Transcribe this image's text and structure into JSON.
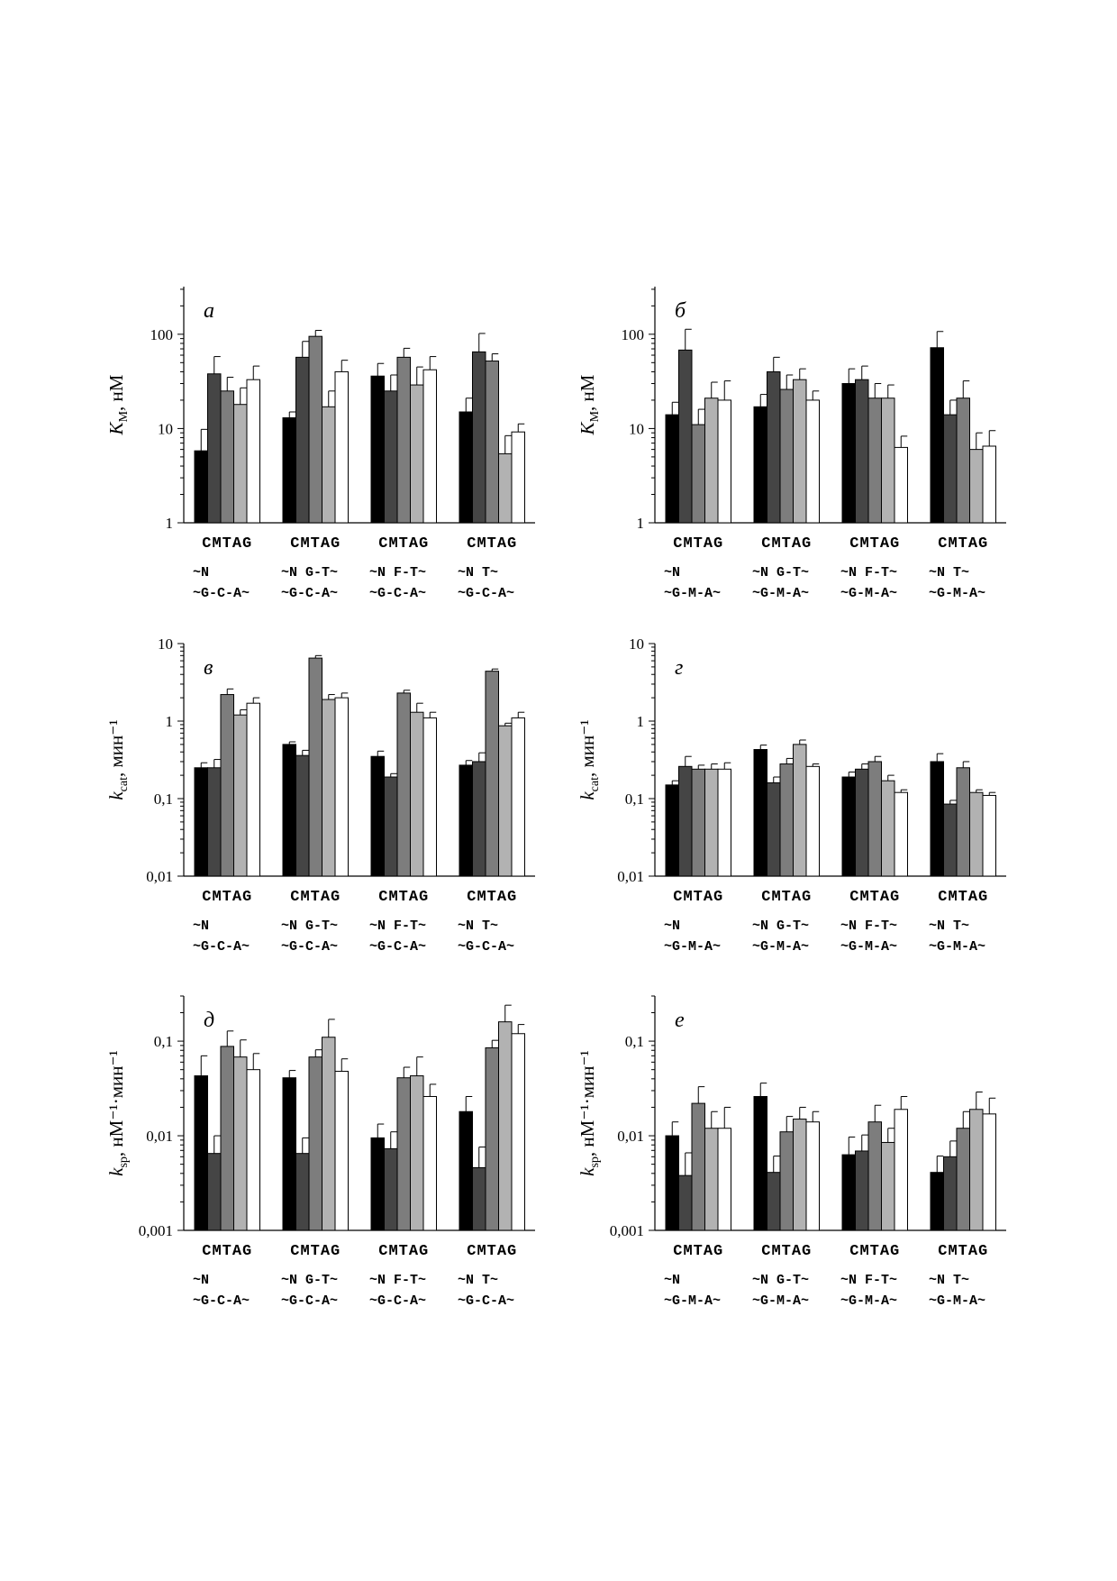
{
  "figure": {
    "bar_colors": [
      "#000000",
      "#454545",
      "#7d7d7d",
      "#b2b2b2",
      "#ffffff"
    ],
    "bar_labels": [
      "C",
      "M",
      "T",
      "A",
      "G"
    ],
    "seq_lines_cga": [
      [
        "~N",
        "~G-C-A~"
      ],
      [
        "~N G-T~",
        "~G-C-A~"
      ],
      [
        "~N F-T~",
        "~G-C-A~"
      ],
      [
        "~N    T~",
        "~G-C-A~"
      ]
    ],
    "seq_lines_gma": [
      [
        "~N",
        "~G-M-A~"
      ],
      [
        "~N G-T~",
        "~G-M-A~"
      ],
      [
        "~N F-T~",
        "~G-M-A~"
      ],
      [
        "~N    T~",
        "~G-M-A~"
      ]
    ]
  },
  "chart_data": [
    {
      "type": "bar",
      "panel_label": "а",
      "scale": "log",
      "ylabel": "K_M, нМ",
      "ylim": [
        1,
        320
      ],
      "yticks": [
        "1",
        "10",
        "100"
      ],
      "categories": [
        "C",
        "M",
        "T",
        "A",
        "G"
      ],
      "groups": 4,
      "values": [
        [
          5.8,
          38,
          25,
          18,
          33
        ],
        [
          13,
          57,
          95,
          17,
          40
        ],
        [
          36,
          25,
          57,
          29,
          42
        ],
        [
          15,
          65,
          52,
          5.4,
          9.2
        ]
      ],
      "errors": [
        [
          4,
          20,
          10,
          9,
          13
        ],
        [
          2,
          27,
          15,
          8,
          13
        ],
        [
          13,
          12,
          14,
          16,
          16
        ],
        [
          6,
          37,
          10,
          3,
          2
        ]
      ]
    },
    {
      "type": "bar",
      "panel_label": "б",
      "scale": "log",
      "ylabel": "K_M, нМ",
      "ylim": [
        1,
        320
      ],
      "yticks": [
        "1",
        "10",
        "100"
      ],
      "categories": [
        "C",
        "M",
        "T",
        "A",
        "G"
      ],
      "groups": 4,
      "values": [
        [
          14,
          68,
          11,
          21,
          20
        ],
        [
          17,
          40,
          26,
          33,
          20
        ],
        [
          30,
          33,
          21,
          21,
          6.3
        ],
        [
          72,
          14,
          21,
          6,
          6.5
        ]
      ],
      "errors": [
        [
          5,
          45,
          5,
          10,
          12
        ],
        [
          6,
          17,
          11,
          10,
          5
        ],
        [
          13,
          13,
          9,
          8,
          2
        ],
        [
          35,
          6,
          11,
          3,
          3
        ]
      ]
    },
    {
      "type": "bar",
      "panel_label": "в",
      "scale": "log",
      "ylabel": "k_cat, мин⁻¹",
      "ylim": [
        0.01,
        10
      ],
      "yticks": [
        "0,01",
        "0,1",
        "1",
        "10"
      ],
      "categories": [
        "C",
        "M",
        "T",
        "A",
        "G"
      ],
      "groups": 4,
      "values": [
        [
          0.25,
          0.25,
          2.2,
          1.2,
          1.7
        ],
        [
          0.5,
          0.36,
          6.5,
          1.9,
          2.0
        ],
        [
          0.35,
          0.19,
          2.3,
          1.3,
          1.1
        ],
        [
          0.27,
          0.3,
          4.4,
          0.87,
          1.1
        ]
      ],
      "errors": [
        [
          0.04,
          0.07,
          0.4,
          0.2,
          0.3
        ],
        [
          0.04,
          0.06,
          0.5,
          0.3,
          0.3
        ],
        [
          0.06,
          0.02,
          0.2,
          0.4,
          0.2
        ],
        [
          0.04,
          0.09,
          0.3,
          0.07,
          0.2
        ]
      ]
    },
    {
      "type": "bar",
      "panel_label": "г",
      "scale": "log",
      "ylabel": "k_cat, мин⁻¹",
      "ylim": [
        0.01,
        10
      ],
      "yticks": [
        "0,01",
        "0,1",
        "1",
        "10"
      ],
      "categories": [
        "C",
        "M",
        "T",
        "A",
        "G"
      ],
      "groups": 4,
      "values": [
        [
          0.15,
          0.26,
          0.24,
          0.24,
          0.24
        ],
        [
          0.43,
          0.16,
          0.28,
          0.5,
          0.26
        ],
        [
          0.19,
          0.24,
          0.3,
          0.17,
          0.12
        ],
        [
          0.3,
          0.085,
          0.25,
          0.12,
          0.11
        ]
      ],
      "errors": [
        [
          0.02,
          0.09,
          0.03,
          0.04,
          0.05
        ],
        [
          0.06,
          0.03,
          0.05,
          0.07,
          0.02
        ],
        [
          0.03,
          0.04,
          0.05,
          0.03,
          0.01
        ],
        [
          0.08,
          0.01,
          0.05,
          0.01,
          0.01
        ]
      ]
    },
    {
      "type": "bar",
      "panel_label": "д",
      "scale": "log",
      "ylabel": "k_sp, нМ⁻¹·мин⁻¹",
      "ylim": [
        0.001,
        0.3
      ],
      "yticks": [
        "0,001",
        "0,01",
        "0,1"
      ],
      "categories": [
        "C",
        "M",
        "T",
        "A",
        "G"
      ],
      "groups": 4,
      "values": [
        [
          0.043,
          0.0065,
          0.088,
          0.068,
          0.05
        ],
        [
          0.041,
          0.0065,
          0.068,
          0.11,
          0.048
        ],
        [
          0.0095,
          0.0073,
          0.041,
          0.043,
          0.026
        ],
        [
          0.018,
          0.0046,
          0.085,
          0.16,
          0.12
        ]
      ],
      "errors": [
        [
          0.027,
          0.0035,
          0.04,
          0.035,
          0.024
        ],
        [
          0.008,
          0.003,
          0.013,
          0.06,
          0.017
        ],
        [
          0.0038,
          0.0037,
          0.012,
          0.025,
          0.009
        ],
        [
          0.008,
          0.003,
          0.017,
          0.08,
          0.03
        ]
      ]
    },
    {
      "type": "bar",
      "panel_label": "е",
      "scale": "log",
      "ylabel": "k_sp, нМ⁻¹·мин⁻¹",
      "ylim": [
        0.001,
        0.3
      ],
      "yticks": [
        "0,001",
        "0,01",
        "0,1"
      ],
      "categories": [
        "C",
        "M",
        "T",
        "A",
        "G"
      ],
      "groups": 4,
      "values": [
        [
          0.01,
          0.0038,
          0.022,
          0.012,
          0.012
        ],
        [
          0.026,
          0.0041,
          0.011,
          0.015,
          0.014
        ],
        [
          0.0063,
          0.0069,
          0.014,
          0.0085,
          0.019
        ],
        [
          0.0041,
          0.006,
          0.012,
          0.019,
          0.017
        ]
      ],
      "errors": [
        [
          0.004,
          0.0028,
          0.011,
          0.006,
          0.008
        ],
        [
          0.01,
          0.002,
          0.005,
          0.005,
          0.004
        ],
        [
          0.0034,
          0.0033,
          0.007,
          0.0035,
          0.007
        ],
        [
          0.002,
          0.0028,
          0.006,
          0.01,
          0.008
        ]
      ]
    }
  ]
}
